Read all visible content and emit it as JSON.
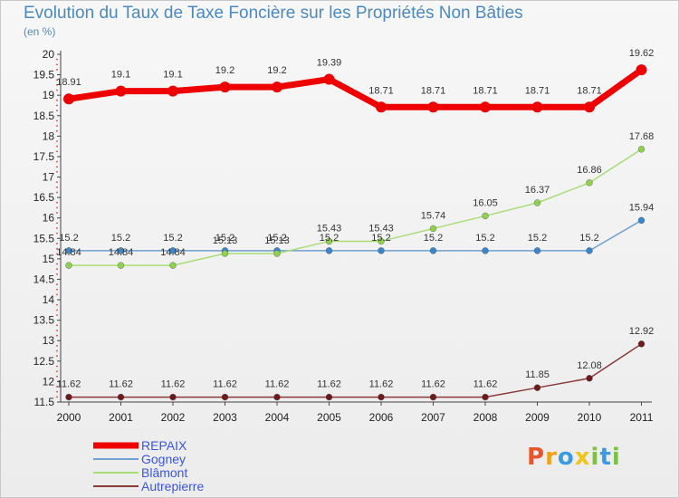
{
  "title": "Evolution du Taux de Taxe Foncière sur les Propriétés Non Bâties",
  "subtitle": "(en %)",
  "logo": {
    "letters": [
      "P",
      "r",
      "o",
      "x",
      "i",
      "t",
      "i"
    ],
    "colors": [
      "#e8542b",
      "#f0a21c",
      "#3a9be0",
      "#f0c419",
      "#7cc242",
      "#3a9be0",
      "#7cc242"
    ]
  },
  "chart_data": {
    "type": "line",
    "x": [
      "2000",
      "2001",
      "2002",
      "2003",
      "2004",
      "2005",
      "2006",
      "2007",
      "2008",
      "2009",
      "2010",
      "2011"
    ],
    "ylim": [
      11.5,
      20
    ],
    "yticks": [
      "11.5",
      "12",
      "12.5",
      "13",
      "13.5",
      "14",
      "14.5",
      "15",
      "15.5",
      "16",
      "16.5",
      "17",
      "17.5",
      "18",
      "18.5",
      "19",
      "19.5",
      "20"
    ],
    "grid": false,
    "legend_position": "bottom-left",
    "series": [
      {
        "name": "REPAIX",
        "color": "#ee0000",
        "width": 7,
        "marker": 6,
        "values": [
          18.91,
          19.1,
          19.1,
          19.2,
          19.2,
          19.39,
          18.71,
          18.71,
          18.71,
          18.71,
          18.71,
          19.62
        ],
        "labels": [
          "18.91",
          "19.1",
          "19.1",
          "19.2",
          "19.2",
          "19.39",
          "18.71",
          "18.71",
          "18.71",
          "18.71",
          "18.71",
          "19.62"
        ]
      },
      {
        "name": "Gogney",
        "color": "#6fa0d0",
        "marker_color": "#3a86cc",
        "width": 1.5,
        "marker": 3.5,
        "values": [
          15.2,
          15.2,
          15.2,
          15.2,
          15.2,
          15.2,
          15.2,
          15.2,
          15.2,
          15.2,
          15.2,
          15.94
        ],
        "labels": [
          "15.2",
          "15.2",
          "15.2",
          "15.2",
          "15.2",
          "15.2",
          "15.2",
          "15.2",
          "15.2",
          "15.2",
          "15.2",
          "15.94"
        ]
      },
      {
        "name": "Blâmont",
        "color": "#a8dd78",
        "marker_color": "#8fd14f",
        "width": 1.5,
        "marker": 3.5,
        "values": [
          14.84,
          14.84,
          14.84,
          15.13,
          15.13,
          15.43,
          15.43,
          15.74,
          16.05,
          16.37,
          16.86,
          17.68
        ],
        "labels": [
          "14.84",
          "14.84",
          "14.84",
          "15.13",
          "15.13",
          "15.43",
          "15.43",
          "15.74",
          "16.05",
          "16.37",
          "16.86",
          "17.68"
        ]
      },
      {
        "name": "Autrepierre",
        "color": "#8b3a3a",
        "marker_color": "#6e1a1a",
        "width": 1.5,
        "marker": 3.5,
        "values": [
          11.62,
          11.62,
          11.62,
          11.62,
          11.62,
          11.62,
          11.62,
          11.62,
          11.62,
          11.85,
          12.08,
          12.92
        ],
        "labels": [
          "11.62",
          "11.62",
          "11.62",
          "11.62",
          "11.62",
          "11.62",
          "11.62",
          "11.62",
          "11.62",
          "11.85",
          "12.08",
          "12.92"
        ]
      }
    ]
  }
}
